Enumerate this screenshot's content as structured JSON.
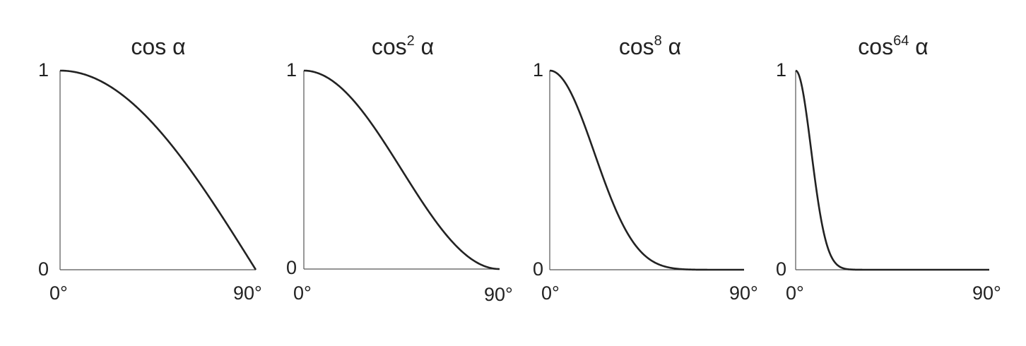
{
  "chart_data": [
    {
      "type": "line",
      "title": {
        "base": "cos",
        "exponent": "",
        "variable": "α"
      },
      "exponent": 1,
      "x_ticks": [
        "0°",
        "90°"
      ],
      "y_ticks": [
        "0",
        "1"
      ],
      "xlim": [
        0,
        90
      ],
      "ylim": [
        0,
        1
      ],
      "grid": false,
      "series": [
        {
          "x": [
            0,
            15,
            30,
            45,
            60,
            75,
            90
          ],
          "values": [
            1,
            0.966,
            0.866,
            0.707,
            0.5,
            0.259,
            0
          ]
        }
      ]
    },
    {
      "type": "line",
      "title": {
        "base": "cos",
        "exponent": "2",
        "variable": "α"
      },
      "exponent": 2,
      "x_ticks": [
        "0°",
        "90°"
      ],
      "y_ticks": [
        "0",
        "1"
      ],
      "xlim": [
        0,
        90
      ],
      "ylim": [
        0,
        1
      ],
      "grid": false,
      "series": [
        {
          "x": [
            0,
            15,
            30,
            45,
            60,
            75,
            90
          ],
          "values": [
            1,
            0.933,
            0.75,
            0.5,
            0.25,
            0.067,
            0
          ]
        }
      ]
    },
    {
      "type": "line",
      "title": {
        "base": "cos",
        "exponent": "8",
        "variable": "α"
      },
      "exponent": 8,
      "x_ticks": [
        "0°",
        "90°"
      ],
      "y_ticks": [
        "0",
        "1"
      ],
      "xlim": [
        0,
        90
      ],
      "ylim": [
        0,
        1
      ],
      "grid": false,
      "series": [
        {
          "x": [
            0,
            15,
            30,
            45,
            60,
            75,
            90
          ],
          "values": [
            1,
            0.758,
            0.316,
            0.063,
            0.004,
            2e-05,
            0
          ]
        }
      ]
    },
    {
      "type": "line",
      "title": {
        "base": "cos",
        "exponent": "64",
        "variable": "α"
      },
      "exponent": 64,
      "x_ticks": [
        "0°",
        "90°"
      ],
      "y_ticks": [
        "0",
        "1"
      ],
      "xlim": [
        0,
        90
      ],
      "ylim": [
        0,
        1
      ],
      "grid": false,
      "series": [
        {
          "x": [
            0,
            5,
            10,
            15,
            20,
            30,
            45,
            90
          ],
          "values": [
            1,
            0.784,
            0.376,
            0.109,
            0.019,
            0.0001,
            0,
            0
          ]
        }
      ]
    }
  ]
}
